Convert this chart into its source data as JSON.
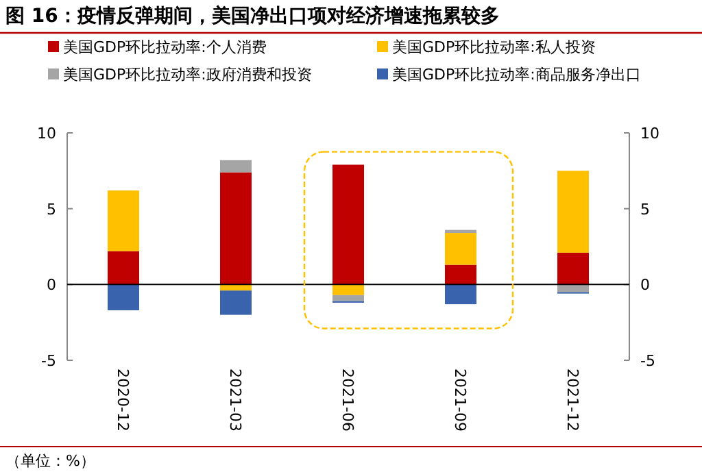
{
  "chart_data": {
    "type": "bar",
    "stacked": true,
    "title": "图 16：疫情反弹期间，美国净出口项对经济增速拖累较多",
    "categories": [
      "2020-12",
      "2021-03",
      "2021-06",
      "2021-09",
      "2021-12"
    ],
    "series": [
      {
        "name": "美国GDP环比拉动率:个人消费",
        "color": "#c00000",
        "values": [
          2.2,
          7.4,
          7.9,
          1.3,
          2.1
        ]
      },
      {
        "name": "美国GDP环比拉动率:私人投资",
        "color": "#ffc000",
        "values": [
          4.0,
          -0.4,
          -0.7,
          2.1,
          5.4
        ]
      },
      {
        "name": "美国GDP环比拉动率:政府消费和投资",
        "color": "#a5a5a5",
        "values": [
          0,
          0.8,
          -0.4,
          0.2,
          -0.5
        ]
      },
      {
        "name": "美国GDP环比拉动率:商品服务净出口",
        "color": "#3a63ad",
        "values": [
          -1.7,
          -1.6,
          -0.1,
          -1.3,
          -0.1
        ]
      }
    ],
    "ylim": [
      -5,
      10
    ],
    "yticks": [
      -5,
      0,
      5,
      10
    ],
    "y2lim": [
      -5,
      10
    ],
    "y2ticks": [
      -5,
      0,
      5,
      10
    ],
    "legend": "top",
    "annotations": [
      "（单位：%）"
    ]
  }
}
